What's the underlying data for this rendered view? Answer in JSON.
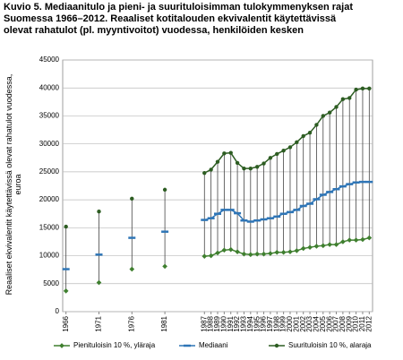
{
  "chart_data": {
    "type": "line",
    "title": "Kuvio 5. Mediaanitulo ja pieni- ja suurituloisimman tulokymmenyksen rajat Suomessa 1966–2012. Reaaliset kotitalouden ekvivalentit käytettävissä olevat rahatulot (pl. myyntivoitot) vuodessa, henkilöiden kesken",
    "y_label": "Reaaliset ekvivalentit käytettävissä olevat rahatulot vuodessa, euroa",
    "categories": [
      "1966",
      null,
      null,
      null,
      null,
      "1971",
      null,
      null,
      null,
      null,
      "1976",
      null,
      null,
      null,
      null,
      "1981",
      null,
      null,
      null,
      null,
      null,
      "1987",
      "1988",
      "1989",
      "1990",
      "1991",
      "1992",
      "1993",
      "1994",
      "1995",
      "1996",
      "1997",
      "1998",
      "1999",
      "2000",
      "2001",
      "2002",
      "2003",
      "2004",
      "2005",
      "2006",
      "2007",
      "2008",
      "2009",
      "2010",
      "2011",
      "2012"
    ],
    "series": [
      {
        "name": "Pienituloisin 10 %, yläraja",
        "color": "#3f7f2f",
        "marker": "diamond",
        "values": [
          3700,
          null,
          null,
          null,
          null,
          5200,
          null,
          null,
          null,
          null,
          7600,
          null,
          null,
          null,
          null,
          8100,
          null,
          null,
          null,
          null,
          null,
          9900,
          10000,
          10500,
          11000,
          11100,
          10700,
          10300,
          10200,
          10300,
          10300,
          10400,
          10600,
          10600,
          10700,
          10900,
          11300,
          11500,
          11700,
          11800,
          12000,
          12000,
          12500,
          12800,
          12800,
          12900,
          13200
        ]
      },
      {
        "name": "Mediaani",
        "color": "#2e75b6",
        "marker": "dash",
        "values": [
          7600,
          null,
          null,
          null,
          null,
          10200,
          null,
          null,
          null,
          null,
          13200,
          null,
          null,
          null,
          null,
          14300,
          null,
          null,
          null,
          null,
          null,
          16400,
          16700,
          17500,
          18200,
          18200,
          17600,
          16300,
          16100,
          16300,
          16500,
          16700,
          17000,
          17500,
          17800,
          18200,
          18900,
          19300,
          20100,
          20900,
          21400,
          21900,
          22400,
          22800,
          23100,
          23200,
          23200
        ]
      },
      {
        "name": "Suurituloisin 10 %, alaraja",
        "color": "#2d5d22",
        "marker": "circle",
        "values": [
          15200,
          null,
          null,
          null,
          null,
          17900,
          null,
          null,
          null,
          null,
          20200,
          null,
          null,
          null,
          null,
          21800,
          null,
          null,
          null,
          null,
          null,
          24800,
          25400,
          26800,
          28300,
          28400,
          26600,
          25600,
          25600,
          25900,
          26500,
          27500,
          28200,
          28800,
          29400,
          30300,
          31400,
          32000,
          33400,
          35000,
          35600,
          36600,
          38000,
          38200,
          39700,
          39900,
          39900
        ]
      }
    ],
    "ylim": [
      0,
      45000
    ],
    "yticks": [
      0,
      5000,
      10000,
      15000,
      20000,
      25000,
      30000,
      35000,
      40000,
      45000
    ],
    "grid": true,
    "range_lines": true,
    "legend": "bottom"
  }
}
